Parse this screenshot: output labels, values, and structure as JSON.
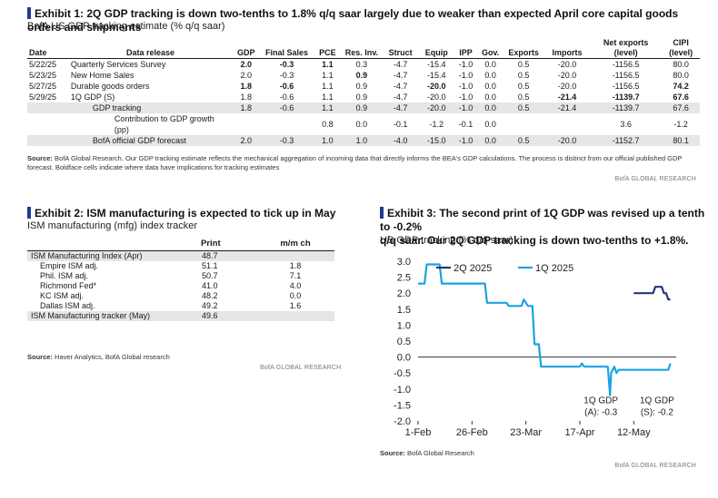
{
  "exhibit1": {
    "title": "Exhibit 1: 2Q GDP tracking is down two-tenths to 1.8% q/q saar largely due to weaker than expected April core capital goods orders and shipments",
    "subtitle": "BofA US GDP tracking estimate (% q/q saar)",
    "columns": [
      "Date",
      "Data release",
      "GDP",
      "Final Sales",
      "PCE",
      "Res. Inv.",
      "Struct",
      "Equip",
      "IPP",
      "Gov.",
      "Exports",
      "Imports",
      "Net exports (level)",
      "CIPI (level)"
    ],
    "column_lines": {
      "net_exports": [
        "Net exports",
        "(level)"
      ],
      "cipi": [
        "CIPI",
        "(level)"
      ]
    },
    "rows": [
      {
        "shade": false,
        "cells": [
          {
            "v": "5/22/25"
          },
          {
            "v": "Quarterly Services Survey"
          },
          {
            "v": "2.0",
            "b": true
          },
          {
            "v": "-0.3",
            "b": true
          },
          {
            "v": "1.1",
            "b": true
          },
          {
            "v": "0.3"
          },
          {
            "v": "-4.7"
          },
          {
            "v": "-15.4"
          },
          {
            "v": "-1.0"
          },
          {
            "v": "0.0"
          },
          {
            "v": "0.5"
          },
          {
            "v": "-20.0"
          },
          {
            "v": "-1156.5"
          },
          {
            "v": "80.0"
          }
        ]
      },
      {
        "shade": false,
        "cells": [
          {
            "v": "5/23/25"
          },
          {
            "v": "New Home Sales"
          },
          {
            "v": "2.0"
          },
          {
            "v": "-0.3"
          },
          {
            "v": "1.1"
          },
          {
            "v": "0.9",
            "b": true
          },
          {
            "v": "-4.7"
          },
          {
            "v": "-15.4"
          },
          {
            "v": "-1.0"
          },
          {
            "v": "0.0"
          },
          {
            "v": "0.5"
          },
          {
            "v": "-20.0"
          },
          {
            "v": "-1156.5"
          },
          {
            "v": "80.0"
          }
        ]
      },
      {
        "shade": false,
        "cells": [
          {
            "v": "5/27/25"
          },
          {
            "v": "Durable goods orders"
          },
          {
            "v": "1.8",
            "b": true
          },
          {
            "v": "-0.6",
            "b": true
          },
          {
            "v": "1.1"
          },
          {
            "v": "0.9"
          },
          {
            "v": "-4.7"
          },
          {
            "v": "-20.0",
            "b": true
          },
          {
            "v": "-1.0"
          },
          {
            "v": "0.0"
          },
          {
            "v": "0.5"
          },
          {
            "v": "-20.0"
          },
          {
            "v": "-1156.5"
          },
          {
            "v": "74.2",
            "b": true
          }
        ]
      },
      {
        "shade": false,
        "cells": [
          {
            "v": "5/29/25"
          },
          {
            "v": "1Q GDP (S)"
          },
          {
            "v": "1.8"
          },
          {
            "v": "-0.6"
          },
          {
            "v": "1.1"
          },
          {
            "v": "0.9"
          },
          {
            "v": "-4.7"
          },
          {
            "v": "-20.0"
          },
          {
            "v": "-1.0"
          },
          {
            "v": "0.0"
          },
          {
            "v": "0.5"
          },
          {
            "v": "-21.4",
            "b": true
          },
          {
            "v": "-1139.7",
            "b": true
          },
          {
            "v": "67.6",
            "b": true
          }
        ]
      },
      {
        "shade": true,
        "indent": 1,
        "cells": [
          {
            "v": ""
          },
          {
            "v": "GDP tracking"
          },
          {
            "v": "1.8"
          },
          {
            "v": "-0.6"
          },
          {
            "v": "1.1"
          },
          {
            "v": "0.9"
          },
          {
            "v": "-4.7"
          },
          {
            "v": "-20.0"
          },
          {
            "v": "-1.0"
          },
          {
            "v": "0.0"
          },
          {
            "v": "0.5"
          },
          {
            "v": "-21.4"
          },
          {
            "v": "-1139.7"
          },
          {
            "v": "67.6"
          }
        ]
      },
      {
        "shade": false,
        "indent": 2,
        "cells": [
          {
            "v": ""
          },
          {
            "v": "Contribution to GDP growth (pp)"
          },
          {
            "v": ""
          },
          {
            "v": ""
          },
          {
            "v": "0.8"
          },
          {
            "v": "0.0"
          },
          {
            "v": "-0.1"
          },
          {
            "v": "-1.2"
          },
          {
            "v": "-0.1"
          },
          {
            "v": "0.0"
          },
          {
            "v": ""
          },
          {
            "v": ""
          },
          {
            "v": "3.6"
          },
          {
            "v": "-1.2"
          }
        ]
      },
      {
        "shade": true,
        "indent": 1,
        "cells": [
          {
            "v": ""
          },
          {
            "v": "BofA official GDP forecast"
          },
          {
            "v": "2.0"
          },
          {
            "v": "-0.3"
          },
          {
            "v": "1.0"
          },
          {
            "v": "1.0"
          },
          {
            "v": "-4.0"
          },
          {
            "v": "-15.0"
          },
          {
            "v": "-1.0"
          },
          {
            "v": "0.0"
          },
          {
            "v": "0.5"
          },
          {
            "v": "-20.0"
          },
          {
            "v": "-1152.7"
          },
          {
            "v": "80.1"
          }
        ]
      }
    ],
    "source_label": "Source:",
    "source_text": "BofA Global Research. Our GDP tracking estimate reflects the mechanical aggregation of incoming data that directly informs the BEA's GDP calculations. The process is distinct from our official published GDP forecast. Boldface cells indicate where data have implications for tracking estimates",
    "brand": "BofA GLOBAL RESEARCH"
  },
  "exhibit2": {
    "title": "Exhibit 2: ISM manufacturing is expected to tick up in May",
    "subtitle": "ISM manufacturing (mfg) index tracker",
    "columns": [
      "",
      "Print",
      "m/m ch"
    ],
    "rows": [
      {
        "shade": true,
        "indent": 0,
        "label": "ISM Manufacturing Index (Apr)",
        "print": "48.7",
        "mm": ""
      },
      {
        "shade": false,
        "indent": 1,
        "label": "Empire ISM adj.",
        "print": "51.1",
        "mm": "1.8"
      },
      {
        "shade": false,
        "indent": 1,
        "label": "Phil. ISM adj.",
        "print": "50.7",
        "mm": "7.1"
      },
      {
        "shade": false,
        "indent": 1,
        "label": "Richmond Fed*",
        "print": "41.0",
        "mm": "4.0"
      },
      {
        "shade": false,
        "indent": 1,
        "label": "KC ISM adj.",
        "print": "48.2",
        "mm": "0.0"
      },
      {
        "shade": false,
        "indent": 1,
        "label": "Dallas ISM adj.",
        "print": "49.2",
        "mm": "1.6"
      },
      {
        "shade": true,
        "indent": 0,
        "label": "ISM Manufacturing tracker (May)",
        "print": "49.6",
        "mm": ""
      }
    ],
    "source_label": "Source:",
    "source_text": "Haver Analytics, BofA Global research",
    "brand": "BofA GLOBAL RESEARCH"
  },
  "exhibit3": {
    "title_lines": [
      "Exhibit 3: The second print of 1Q GDP was revised up a tenth to -0.2%",
      "q/q saar. Our 2Q GDP tracking is down two-tenths to +1.8%."
    ],
    "subtitle": "US GDP tracking (% q/q saar)",
    "source_label": "Source:",
    "source_text": "BofA Global Research",
    "brand": "BofA GLOBAL RESEARCH"
  },
  "chart_data": {
    "type": "line",
    "title": "",
    "xlabel": "",
    "ylabel": "",
    "ylim": [
      -2.0,
      3.0
    ],
    "yticks": [
      3.0,
      2.5,
      2.0,
      1.5,
      1.0,
      0.5,
      0.0,
      -0.5,
      -1.0,
      -1.5,
      -2.0
    ],
    "xticks": [
      {
        "label": "1-Feb",
        "day": 32
      },
      {
        "label": "26-Feb",
        "day": 57
      },
      {
        "label": "23-Mar",
        "day": 82
      },
      {
        "label": "17-Apr",
        "day": 107
      },
      {
        "label": "12-May",
        "day": 132
      }
    ],
    "xlim_days": [
      32,
      150
    ],
    "legend": "top-left",
    "grid": false,
    "colors": {
      "q2": "#1f3a7a",
      "q1": "#1aa3e0",
      "axis": "#333333"
    },
    "series": [
      {
        "name": "2Q 2025",
        "color": "#1f3a7a",
        "points": [
          [
            132,
            2.0
          ],
          [
            134,
            2.0
          ],
          [
            135,
            2.0
          ],
          [
            137,
            2.0
          ],
          [
            138,
            2.0
          ],
          [
            141,
            2.0
          ],
          [
            142,
            2.2
          ],
          [
            144,
            2.2
          ],
          [
            145,
            2.2
          ],
          [
            146,
            2.0
          ],
          [
            147,
            2.0
          ],
          [
            148,
            1.8
          ],
          [
            149,
            1.8
          ]
        ]
      },
      {
        "name": "1Q 2025",
        "color": "#1aa3e0",
        "points": [
          [
            32,
            2.3
          ],
          [
            35,
            2.3
          ],
          [
            36,
            2.9
          ],
          [
            38,
            2.9
          ],
          [
            42,
            2.9
          ],
          [
            43,
            2.3
          ],
          [
            45,
            2.3
          ],
          [
            46,
            2.3
          ],
          [
            51,
            2.3
          ],
          [
            52,
            2.3
          ],
          [
            54,
            2.3
          ],
          [
            55,
            2.3
          ],
          [
            57,
            2.3
          ],
          [
            58,
            2.3
          ],
          [
            60,
            2.3
          ],
          [
            61,
            2.3
          ],
          [
            63,
            2.3
          ],
          [
            64,
            1.7
          ],
          [
            66,
            1.7
          ],
          [
            68,
            1.7
          ],
          [
            73,
            1.7
          ],
          [
            74,
            1.6
          ],
          [
            76,
            1.6
          ],
          [
            77,
            1.6
          ],
          [
            79,
            1.6
          ],
          [
            80,
            1.6
          ],
          [
            81,
            1.8
          ],
          [
            83,
            1.6
          ],
          [
            85,
            1.6
          ],
          [
            86,
            0.4
          ],
          [
            88,
            0.4
          ],
          [
            89,
            -0.3
          ],
          [
            91,
            -0.3
          ],
          [
            92,
            -0.3
          ],
          [
            95,
            -0.3
          ],
          [
            96,
            -0.3
          ],
          [
            98,
            -0.3
          ],
          [
            99,
            -0.3
          ],
          [
            101,
            -0.3
          ],
          [
            102,
            -0.3
          ],
          [
            103,
            -0.3
          ],
          [
            104,
            -0.3
          ],
          [
            105,
            -0.3
          ],
          [
            106,
            -0.3
          ],
          [
            107,
            -0.3
          ],
          [
            108,
            -0.2
          ],
          [
            109,
            -0.3
          ],
          [
            110,
            -0.3
          ],
          [
            111,
            -0.3
          ],
          [
            112,
            -0.3
          ],
          [
            113,
            -0.3
          ],
          [
            114,
            -0.3
          ],
          [
            115,
            -0.3
          ],
          [
            116,
            -0.3
          ],
          [
            117,
            -0.3
          ],
          [
            118,
            -0.3
          ],
          [
            119,
            -0.3
          ],
          [
            120,
            -0.3
          ],
          [
            121,
            -1.2
          ],
          [
            121.5,
            -0.5
          ],
          [
            123,
            -0.3
          ],
          [
            124,
            -0.5
          ],
          [
            125,
            -0.4
          ],
          [
            128,
            -0.4
          ],
          [
            131,
            -0.4
          ],
          [
            134,
            -0.4
          ],
          [
            138,
            -0.4
          ],
          [
            141,
            -0.4
          ],
          [
            144,
            -0.4
          ],
          [
            147,
            -0.4
          ],
          [
            148,
            -0.4
          ],
          [
            149,
            -0.2
          ]
        ]
      }
    ],
    "annotations": [
      {
        "lines": [
          "1Q GDP",
          "(A): -0.3"
        ],
        "day": 121,
        "value": -1.2
      },
      {
        "lines": [
          "1Q GDP",
          "(S): -0.2"
        ],
        "day": 147,
        "value": -0.4
      }
    ]
  }
}
